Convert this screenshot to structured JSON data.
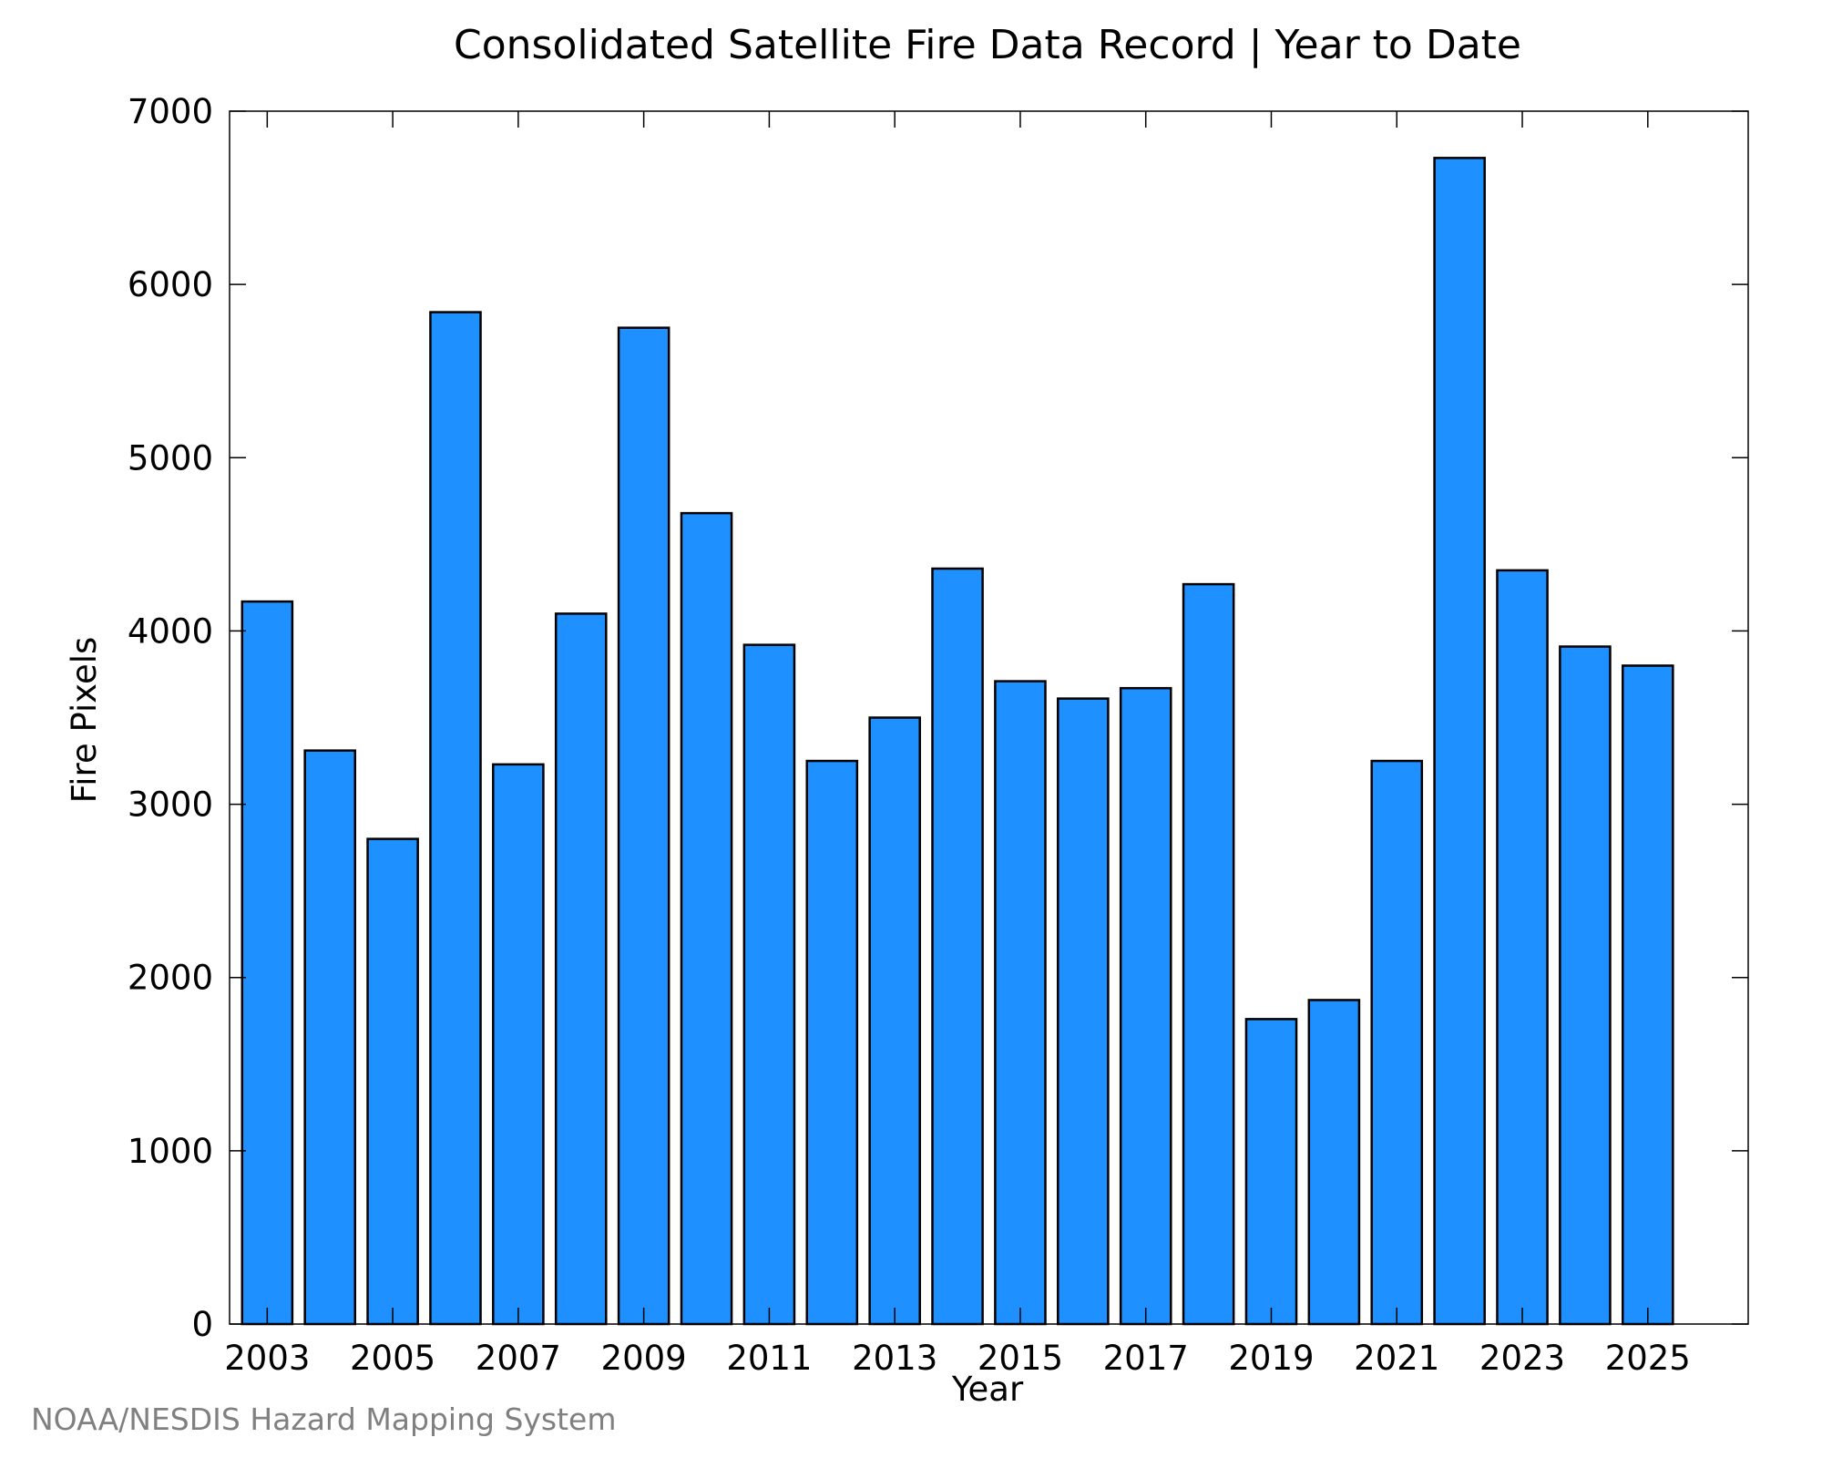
{
  "chart_data": {
    "type": "bar",
    "title": "Consolidated Satellite Fire Data Record | Year to Date",
    "xlabel": "Year",
    "ylabel": "Fire Pixels",
    "categories": [
      2003,
      2004,
      2005,
      2006,
      2007,
      2008,
      2009,
      2010,
      2011,
      2012,
      2013,
      2014,
      2015,
      2016,
      2017,
      2018,
      2019,
      2020,
      2021,
      2022,
      2023,
      2024,
      2025
    ],
    "values": [
      4170,
      3310,
      2800,
      5840,
      3230,
      4100,
      5750,
      4680,
      3920,
      3250,
      3500,
      4360,
      3710,
      3610,
      3670,
      4270,
      1760,
      1870,
      3250,
      6730,
      4350,
      3910,
      3800
    ],
    "xtick_labels": [
      "2003",
      "2005",
      "2007",
      "2009",
      "2011",
      "2013",
      "2015",
      "2017",
      "2019",
      "2021",
      "2023",
      "2025"
    ],
    "ytick_labels": [
      "0",
      "1000",
      "2000",
      "3000",
      "4000",
      "5000",
      "6000",
      "7000"
    ],
    "ylim": [
      0,
      7000
    ],
    "xlim": [
      2002.4,
      2026.6
    ],
    "grid": false,
    "bar_color": "#1e90ff",
    "edge_color": "#000000"
  },
  "footer": {
    "credit": "NOAA/NESDIS Hazard Mapping System"
  }
}
